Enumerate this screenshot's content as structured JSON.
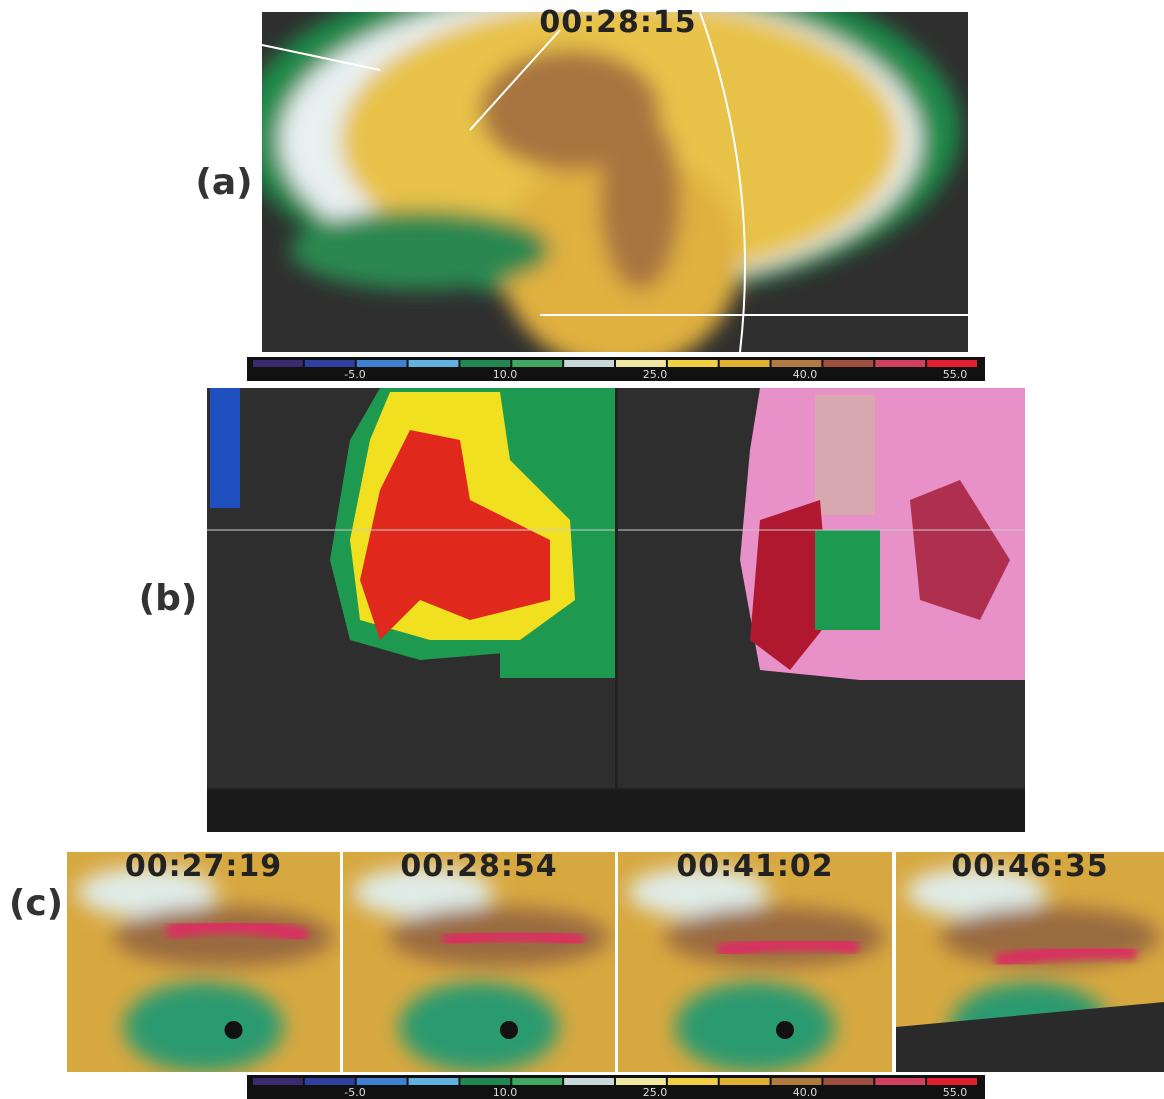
{
  "panel_a": {
    "label": "(a)",
    "time": "00:28:15"
  },
  "colorbar_top": {
    "labels": [
      "-5.0",
      "10.0",
      "25.0",
      "40.0",
      "55.0"
    ]
  },
  "panel_b": {
    "label": "(b)"
  },
  "panel_c": {
    "label": "(c)",
    "times": [
      "00:27:19",
      "00:28:54",
      "00:41:02",
      "00:46:35"
    ]
  },
  "colorbar_bottom": {
    "labels": [
      "-5.0",
      "10.0",
      "25.0",
      "40.0",
      "55.0"
    ]
  }
}
